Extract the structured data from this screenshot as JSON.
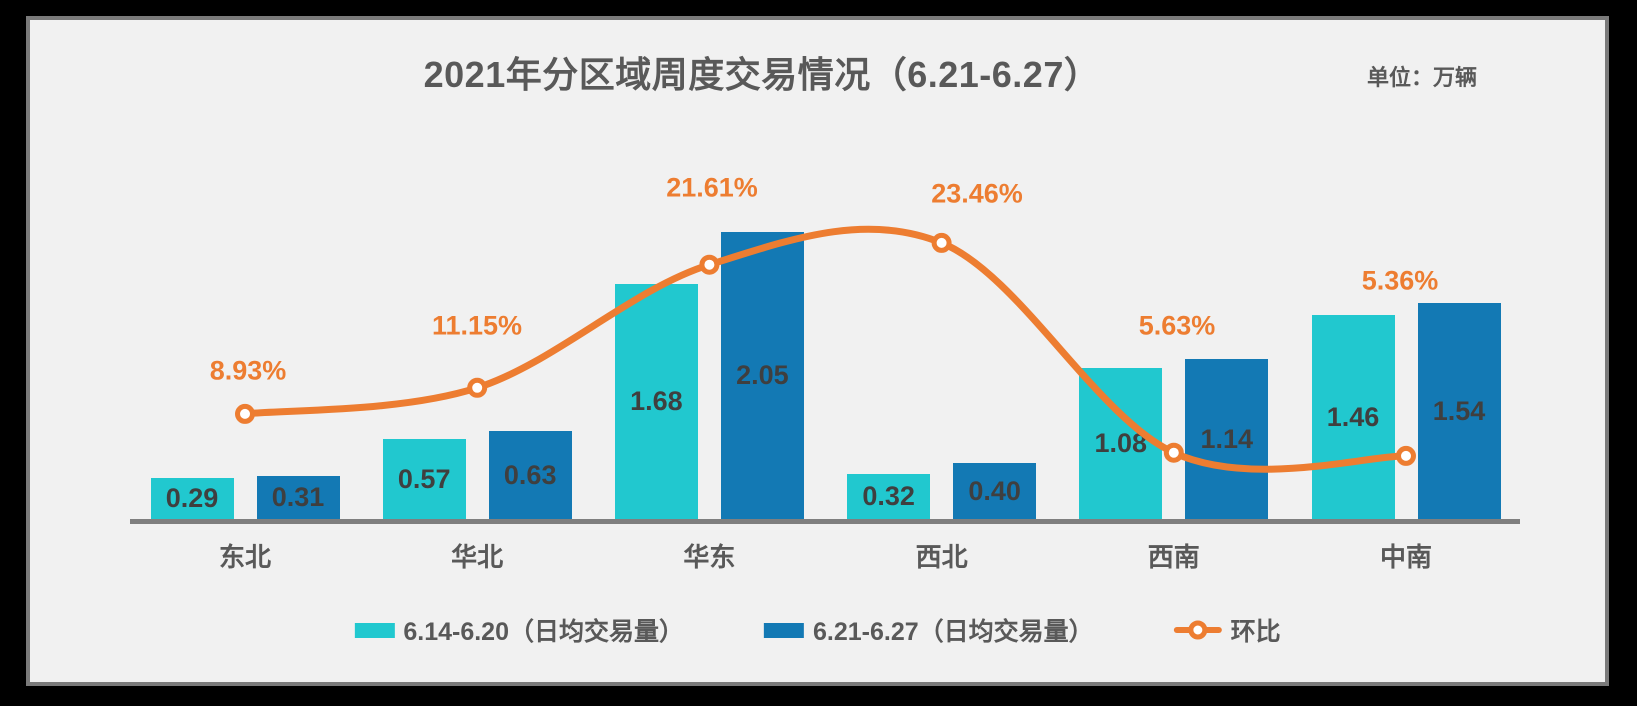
{
  "title": "2021年分区域周度交易情况（6.21-6.27）",
  "unit_label": "单位：万辆",
  "legend": {
    "position": "bottom",
    "items": [
      {
        "label": "6.14-6.20（日均交易量）",
        "type": "bar",
        "color": "#21c8cf"
      },
      {
        "label": "6.21-6.27（日均交易量）",
        "type": "bar",
        "color": "#1379b4"
      },
      {
        "label": "环比",
        "type": "line",
        "color": "#ed7d31"
      }
    ]
  },
  "chart_data": {
    "type": "bar+line combo",
    "title": "2021年分区域周度交易情况（6.21-6.27）",
    "value_unit": "万辆",
    "categories": [
      "东北",
      "华北",
      "华东",
      "西北",
      "西南",
      "中南"
    ],
    "series": [
      {
        "name": "6.14-6.20（日均交易量）",
        "type": "bar",
        "color": "#21c8cf",
        "values": [
          0.29,
          0.57,
          1.68,
          0.32,
          1.08,
          1.46
        ]
      },
      {
        "name": "6.21-6.27（日均交易量）",
        "type": "bar",
        "color": "#1379b4",
        "values": [
          0.31,
          0.63,
          2.05,
          0.4,
          1.14,
          1.54
        ]
      },
      {
        "name": "环比",
        "type": "line",
        "color": "#ed7d31",
        "axis": "secondary",
        "values_pct": [
          8.93,
          11.15,
          21.61,
          23.46,
          5.63,
          5.36
        ],
        "labels": [
          "8.93%",
          "11.15%",
          "21.61%",
          "23.46%",
          "5.63%",
          "5.36%"
        ],
        "marker": "hollow-circle",
        "smooth": true
      }
    ],
    "y_axis": "hidden",
    "grid": "off",
    "legend_position": "bottom"
  },
  "colors": {
    "background_frame": "#000000",
    "card_background": "#f1f1f1",
    "card_border": "#7a7a7a",
    "axis_line": "#7f7f7f",
    "title_text": "#595959",
    "bar_value_text": "#3f3f3f",
    "category_text": "#595959",
    "line_accent": "#ed7d31"
  }
}
